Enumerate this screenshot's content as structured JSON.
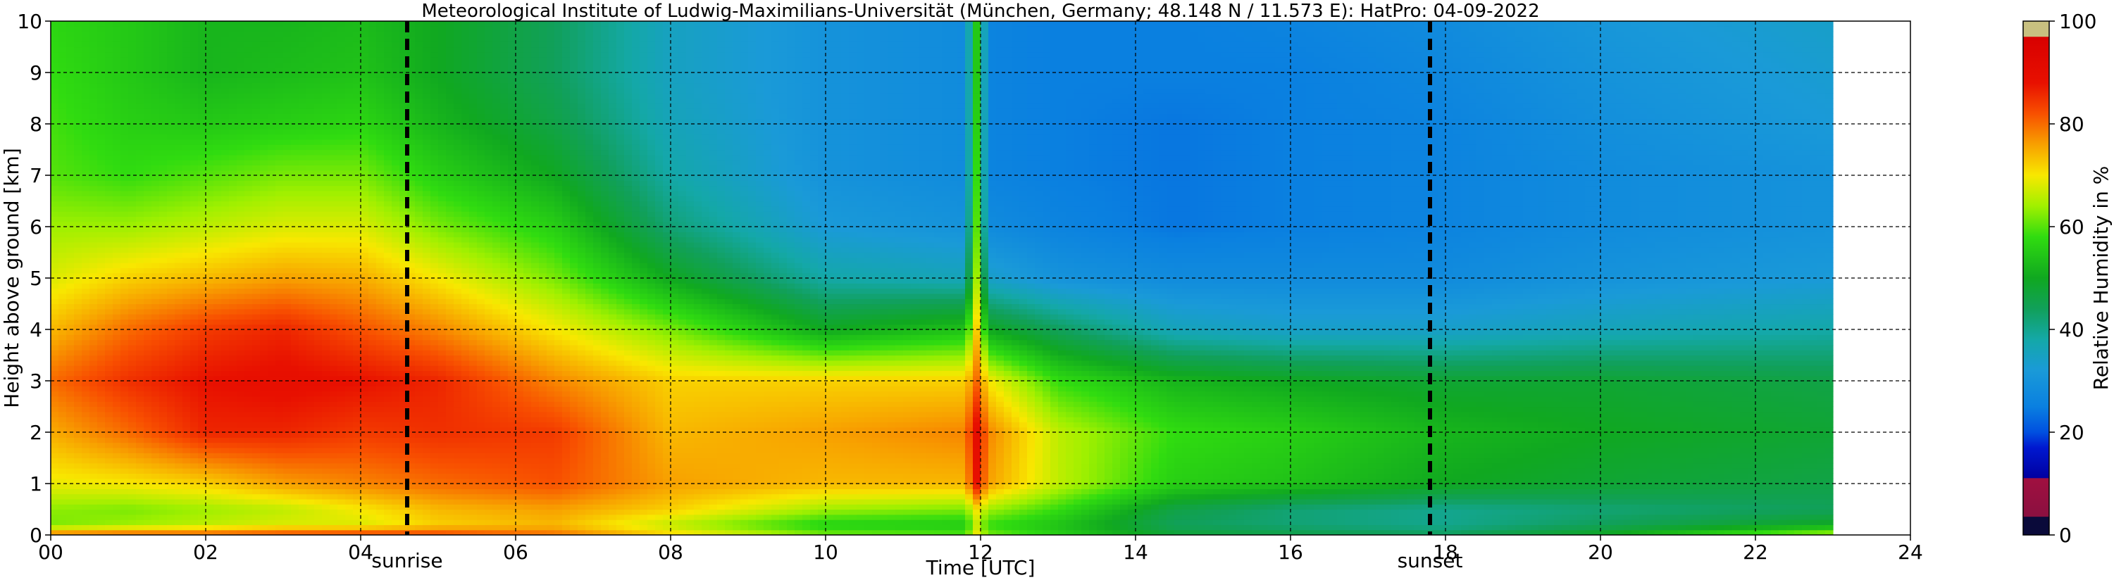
{
  "chart_data": {
    "type": "heatmap",
    "title": "Meteorological Institute of Ludwig-Maximilians-Universität (München, Germany; 48.148 N / 11.573 E):    HatPro: 04-09-2022",
    "xlabel": "Time [UTC]",
    "ylabel": "Height above ground [km]",
    "xlim": [
      0,
      24
    ],
    "ylim": [
      0,
      10
    ],
    "x_ticks": [
      "00",
      "02",
      "04",
      "06",
      "08",
      "10",
      "12",
      "14",
      "16",
      "18",
      "20",
      "22",
      "24"
    ],
    "y_ticks": [
      "0",
      "1",
      "2",
      "3",
      "4",
      "5",
      "6",
      "7",
      "8",
      "9",
      "10"
    ],
    "grid": true,
    "data_end_hour": 23.0,
    "markers": [
      {
        "label": "sunrise",
        "x": 4.6
      },
      {
        "label": "sunset",
        "x": 17.8
      }
    ],
    "colorbar": {
      "label": "Relative Humidity in %",
      "ticks": [
        "0",
        "20",
        "40",
        "60",
        "80",
        "100"
      ],
      "range": [
        0,
        100
      ],
      "stops": [
        {
          "v": 0,
          "c": "#0a0a3a"
        },
        {
          "v": 3.5,
          "c": "#0a0a3a"
        },
        {
          "v": 3.6,
          "c": "#8b1040"
        },
        {
          "v": 11,
          "c": "#a01040"
        },
        {
          "v": 11.1,
          "c": "#0000a0"
        },
        {
          "v": 17,
          "c": "#0018d0"
        },
        {
          "v": 20,
          "c": "#0050e0"
        },
        {
          "v": 25,
          "c": "#0a80e0"
        },
        {
          "v": 32,
          "c": "#1a9ad8"
        },
        {
          "v": 38,
          "c": "#14a8a8"
        },
        {
          "v": 44,
          "c": "#11a05a"
        },
        {
          "v": 50,
          "c": "#10a820"
        },
        {
          "v": 58,
          "c": "#30dc10"
        },
        {
          "v": 64,
          "c": "#a0f000"
        },
        {
          "v": 70,
          "c": "#f8e800"
        },
        {
          "v": 76,
          "c": "#f8a000"
        },
        {
          "v": 82,
          "c": "#f85000"
        },
        {
          "v": 88,
          "c": "#e81000"
        },
        {
          "v": 96.9,
          "c": "#d80000"
        },
        {
          "v": 97,
          "c": "#c8c080"
        },
        {
          "v": 100,
          "c": "#c8c080"
        }
      ]
    },
    "rh_profiles": [
      {
        "t": 0.0,
        "h": [
          0,
          0.2,
          0.5,
          1,
          2,
          3,
          4,
          5,
          6,
          7,
          8,
          9,
          10
        ],
        "rh": [
          80,
          62,
          63,
          69,
          75,
          80,
          74,
          68,
          64,
          60,
          59,
          58,
          57
        ]
      },
      {
        "t": 1.0,
        "h": [
          0,
          0.2,
          0.5,
          1,
          2,
          3,
          4,
          5,
          6,
          7,
          8,
          9,
          10
        ],
        "rh": [
          82,
          64,
          62,
          70,
          80,
          85,
          80,
          72,
          64,
          58,
          56,
          55,
          55
        ]
      },
      {
        "t": 2.0,
        "h": [
          0,
          0.2,
          0.5,
          1,
          2,
          3,
          4,
          5,
          6,
          7,
          8,
          9,
          10
        ],
        "rh": [
          82,
          66,
          64,
          72,
          86,
          88,
          84,
          74,
          66,
          60,
          55,
          52,
          52
        ]
      },
      {
        "t": 3.0,
        "h": [
          0,
          0.2,
          0.5,
          1,
          2,
          3,
          4,
          5,
          6,
          7,
          8,
          9,
          10
        ],
        "rh": [
          84,
          68,
          66,
          76,
          86,
          89,
          86,
          76,
          68,
          62,
          56,
          53,
          52
        ]
      },
      {
        "t": 4.0,
        "h": [
          0,
          0.2,
          0.5,
          1,
          2,
          3,
          4,
          5,
          6,
          7,
          8,
          9,
          10
        ],
        "rh": [
          85,
          68,
          70,
          78,
          84,
          88,
          82,
          75,
          68,
          62,
          57,
          54,
          53
        ]
      },
      {
        "t": 5.0,
        "h": [
          0,
          0.2,
          0.5,
          1,
          2,
          3,
          4,
          5,
          6,
          7,
          8,
          9,
          10
        ],
        "rh": [
          84,
          72,
          74,
          80,
          85,
          86,
          78,
          70,
          62,
          56,
          52,
          50,
          50
        ]
      },
      {
        "t": 6.5,
        "h": [
          0,
          0.2,
          0.5,
          1,
          2,
          3,
          4,
          5,
          6,
          7,
          8,
          9,
          10
        ],
        "rh": [
          80,
          74,
          76,
          82,
          84,
          78,
          70,
          62,
          56,
          50,
          46,
          44,
          44
        ]
      },
      {
        "t": 8.0,
        "h": [
          0,
          0.2,
          0.5,
          1,
          2,
          3,
          4,
          5,
          6,
          7,
          8,
          9,
          10
        ],
        "rh": [
          72,
          66,
          72,
          76,
          74,
          72,
          62,
          50,
          42,
          38,
          36,
          35,
          35
        ]
      },
      {
        "t": 10.0,
        "h": [
          0,
          0.2,
          0.5,
          1,
          2,
          3,
          4,
          5,
          6,
          7,
          8,
          9,
          10
        ],
        "rh": [
          62,
          56,
          64,
          74,
          76,
          72,
          50,
          38,
          32,
          30,
          30,
          30,
          30
        ]
      },
      {
        "t": 11.8,
        "h": [
          0,
          0.2,
          0.5,
          1,
          2,
          3,
          4,
          5,
          6,
          7,
          8,
          9,
          10
        ],
        "rh": [
          60,
          55,
          62,
          74,
          78,
          72,
          54,
          36,
          30,
          28,
          28,
          28,
          28
        ]
      },
      {
        "t": 11.95,
        "h": [
          0,
          0.2,
          0.5,
          1,
          2,
          3,
          4,
          5,
          6,
          7,
          8,
          9,
          10
        ],
        "rh": [
          70,
          66,
          70,
          88,
          90,
          80,
          72,
          64,
          60,
          58,
          56,
          55,
          55
        ]
      },
      {
        "t": 12.1,
        "h": [
          0,
          0.2,
          0.5,
          1,
          2,
          3,
          4,
          5,
          6,
          7,
          8,
          9,
          10
        ],
        "rh": [
          62,
          58,
          64,
          76,
          78,
          70,
          50,
          34,
          28,
          26,
          26,
          26,
          26
        ]
      },
      {
        "t": 13.0,
        "h": [
          0,
          0.2,
          0.5,
          1,
          2,
          3,
          4,
          5,
          6,
          7,
          8,
          9,
          10
        ],
        "rh": [
          56,
          54,
          58,
          66,
          66,
          58,
          44,
          30,
          26,
          25,
          25,
          25,
          25
        ]
      },
      {
        "t": 14.5,
        "h": [
          0,
          0.2,
          0.5,
          1,
          2,
          3,
          4,
          5,
          6,
          7,
          8,
          9,
          10
        ],
        "rh": [
          48,
          44,
          46,
          56,
          58,
          52,
          36,
          28,
          24,
          24,
          24,
          25,
          25
        ]
      },
      {
        "t": 16.0,
        "h": [
          0,
          0.2,
          0.5,
          1,
          2,
          3,
          4,
          5,
          6,
          7,
          8,
          9,
          10
        ],
        "rh": [
          46,
          42,
          42,
          54,
          56,
          50,
          34,
          28,
          25,
          25,
          25,
          25,
          26
        ]
      },
      {
        "t": 18.0,
        "h": [
          0,
          0.2,
          0.5,
          1,
          2,
          3,
          4,
          5,
          6,
          7,
          8,
          9,
          10
        ],
        "rh": [
          44,
          40,
          40,
          50,
          52,
          48,
          34,
          28,
          26,
          26,
          26,
          27,
          28
        ]
      },
      {
        "t": 20.0,
        "h": [
          0,
          0.2,
          0.5,
          1,
          2,
          3,
          4,
          5,
          6,
          7,
          8,
          9,
          10
        ],
        "rh": [
          50,
          44,
          42,
          48,
          50,
          48,
          36,
          30,
          28,
          28,
          29,
          30,
          31
        ]
      },
      {
        "t": 23.0,
        "h": [
          0,
          0.2,
          0.5,
          1,
          2,
          3,
          4,
          5,
          6,
          7,
          8,
          9,
          10
        ],
        "rh": [
          66,
          50,
          44,
          46,
          48,
          46,
          38,
          32,
          30,
          30,
          32,
          33,
          34
        ]
      }
    ]
  }
}
